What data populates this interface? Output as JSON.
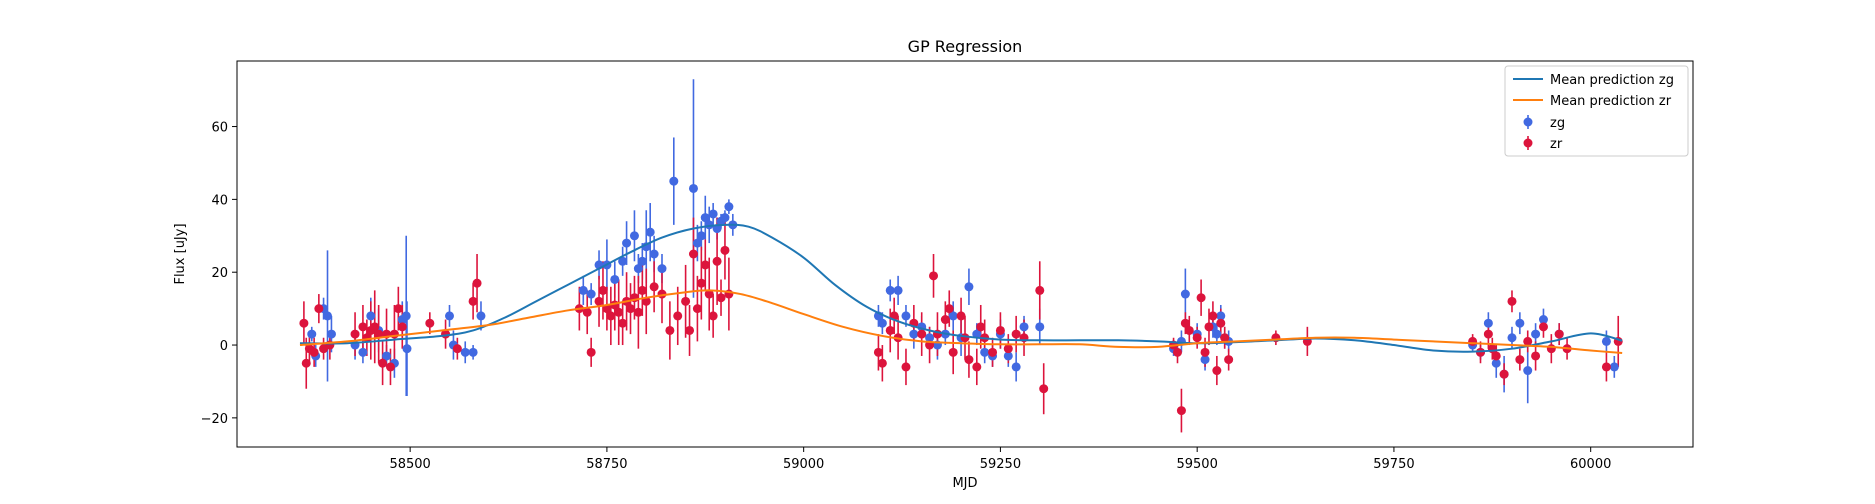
{
  "chart_data": {
    "type": "scatter",
    "title": "GP Regression",
    "xlabel": "MJD",
    "ylabel": "Flux [uJy]",
    "xlim": [
      58280,
      60130
    ],
    "ylim": [
      -28,
      78
    ],
    "grid": false,
    "legend_position": "top-right",
    "x_ticks": [
      58500,
      58750,
      59000,
      59250,
      59500,
      59750,
      60000
    ],
    "y_ticks": [
      -20,
      0,
      20,
      40,
      60
    ],
    "colors": {
      "mean_zg": "#1f77b4",
      "mean_zr": "#ff7f0e",
      "zg": "#4169e1",
      "zr": "#dc143c"
    },
    "lines": [
      {
        "name": "Mean prediction zg",
        "x": [
          58360,
          58420,
          58480,
          58540,
          58580,
          58620,
          58660,
          58700,
          58740,
          58780,
          58820,
          58860,
          58900,
          58930,
          58960,
          59000,
          59040,
          59080,
          59120,
          59160,
          59200,
          59250,
          59300,
          59350,
          59400,
          59450,
          59500,
          59550,
          59600,
          59650,
          59700,
          59750,
          59800,
          59850,
          59900,
          59950,
          60000,
          60040
        ],
        "y": [
          0.5,
          0.5,
          1.5,
          2.5,
          4,
          7.5,
          12,
          16.5,
          21,
          25.5,
          29.5,
          32,
          33,
          32.5,
          29.5,
          24,
          16.5,
          10.5,
          6.5,
          4,
          2.5,
          1.5,
          1.3,
          1.3,
          1.3,
          1,
          0.5,
          0.8,
          1.3,
          1.8,
          1.3,
          0,
          -1.5,
          -1.8,
          -1,
          1,
          3.2,
          1.2
        ]
      },
      {
        "name": "Mean prediction zr",
        "x": [
          58360,
          58420,
          58480,
          58540,
          58600,
          58650,
          58700,
          58750,
          58800,
          58850,
          58880,
          58920,
          58960,
          59000,
          59050,
          59100,
          59150,
          59200,
          59250,
          59300,
          59350,
          59400,
          59450,
          59500,
          59550,
          59600,
          59650,
          59700,
          59750,
          59800,
          59850,
          59900,
          59950,
          60000,
          60040
        ],
        "y": [
          0,
          1,
          2.5,
          4,
          5.5,
          7.5,
          9.5,
          11,
          13,
          14.5,
          15,
          14,
          11.5,
          8.5,
          5,
          2.5,
          1,
          0.5,
          0.2,
          0.2,
          0.2,
          -0.5,
          -0.5,
          0.5,
          1,
          1.5,
          2,
          2,
          1.5,
          1,
          0.5,
          0,
          -0.5,
          -1.5,
          -2.2
        ]
      }
    ],
    "series": [
      {
        "name": "zg",
        "points": [
          [
            58375,
            3,
            2
          ],
          [
            58380,
            -3,
            3
          ],
          [
            58390,
            10,
            3
          ],
          [
            58395,
            8,
            18
          ],
          [
            58400,
            3,
            5
          ],
          [
            58430,
            0,
            4
          ],
          [
            58440,
            -2,
            3
          ],
          [
            58450,
            8,
            5
          ],
          [
            58460,
            4,
            6
          ],
          [
            58470,
            -3,
            3
          ],
          [
            58480,
            -5,
            4
          ],
          [
            58490,
            7,
            5
          ],
          [
            58495,
            8,
            22
          ],
          [
            58496,
            -1,
            13
          ],
          [
            58550,
            8,
            3
          ],
          [
            58555,
            0,
            4
          ],
          [
            58570,
            -2,
            3
          ],
          [
            58580,
            -2,
            2
          ],
          [
            58590,
            8,
            4
          ],
          [
            58720,
            15,
            4
          ],
          [
            58730,
            14,
            3
          ],
          [
            58740,
            22,
            4
          ],
          [
            58750,
            22,
            7
          ],
          [
            58760,
            18,
            5
          ],
          [
            58770,
            23,
            4
          ],
          [
            58775,
            28,
            6
          ],
          [
            58785,
            30,
            7
          ],
          [
            58790,
            21,
            4
          ],
          [
            58795,
            23,
            5
          ],
          [
            58800,
            27,
            10
          ],
          [
            58805,
            31,
            8
          ],
          [
            58810,
            25,
            5
          ],
          [
            58820,
            21,
            4
          ],
          [
            58835,
            45,
            12
          ],
          [
            58860,
            43,
            30
          ],
          [
            58865,
            28,
            5
          ],
          [
            58870,
            30,
            4
          ],
          [
            58875,
            35,
            6
          ],
          [
            58880,
            33,
            5
          ],
          [
            58885,
            36,
            3
          ],
          [
            58890,
            32,
            3
          ],
          [
            58895,
            34,
            2
          ],
          [
            58900,
            35,
            2
          ],
          [
            58905,
            38,
            2
          ],
          [
            58910,
            33,
            3
          ],
          [
            59095,
            8,
            3
          ],
          [
            59100,
            6,
            3
          ],
          [
            59110,
            15,
            3
          ],
          [
            59120,
            15,
            4
          ],
          [
            59130,
            8,
            3
          ],
          [
            59140,
            3,
            4
          ],
          [
            59150,
            5,
            3
          ],
          [
            59160,
            2,
            3
          ],
          [
            59170,
            0,
            4
          ],
          [
            59180,
            3,
            3
          ],
          [
            59190,
            8,
            4
          ],
          [
            59200,
            2,
            5
          ],
          [
            59210,
            16,
            5
          ],
          [
            59220,
            3,
            3
          ],
          [
            59230,
            -2,
            3
          ],
          [
            59240,
            -3,
            3
          ],
          [
            59250,
            3,
            4
          ],
          [
            59260,
            -3,
            3
          ],
          [
            59270,
            -6,
            4
          ],
          [
            59280,
            5,
            3
          ],
          [
            59300,
            5,
            5
          ],
          [
            59470,
            -1,
            2
          ],
          [
            59480,
            1,
            3
          ],
          [
            59485,
            14,
            7
          ],
          [
            59500,
            3,
            3
          ],
          [
            59510,
            -4,
            3
          ],
          [
            59520,
            5,
            3
          ],
          [
            59525,
            3,
            3
          ],
          [
            59530,
            8,
            3
          ],
          [
            59535,
            2,
            3
          ],
          [
            59540,
            1,
            3
          ],
          [
            59850,
            0,
            2
          ],
          [
            59860,
            -2,
            2
          ],
          [
            59870,
            6,
            3
          ],
          [
            59880,
            -5,
            4
          ],
          [
            59890,
            -8,
            5
          ],
          [
            59900,
            2,
            3
          ],
          [
            59910,
            6,
            3
          ],
          [
            59920,
            -7,
            9
          ],
          [
            59930,
            3,
            3
          ],
          [
            59940,
            7,
            3
          ],
          [
            59960,
            3,
            3
          ],
          [
            60020,
            1,
            3
          ],
          [
            60030,
            -6,
            3
          ]
        ]
      },
      {
        "name": "zr",
        "points": [
          [
            58365,
            6,
            6
          ],
          [
            58368,
            -5,
            7
          ],
          [
            58372,
            -1,
            4
          ],
          [
            58378,
            -2,
            4
          ],
          [
            58384,
            10,
            4
          ],
          [
            58390,
            -1,
            3
          ],
          [
            58398,
            0,
            4
          ],
          [
            58430,
            3,
            6
          ],
          [
            58440,
            5,
            6
          ],
          [
            58445,
            2,
            5
          ],
          [
            58450,
            4,
            8
          ],
          [
            58455,
            5,
            10
          ],
          [
            58460,
            3,
            8
          ],
          [
            58465,
            -5,
            6
          ],
          [
            58470,
            3,
            7
          ],
          [
            58475,
            -6,
            5
          ],
          [
            58480,
            3,
            8
          ],
          [
            58485,
            10,
            6
          ],
          [
            58490,
            5,
            6
          ],
          [
            58525,
            6,
            3
          ],
          [
            58545,
            3,
            4
          ],
          [
            58560,
            -1,
            3
          ],
          [
            58580,
            12,
            5
          ],
          [
            58585,
            17,
            8
          ],
          [
            58715,
            10,
            6
          ],
          [
            58725,
            9,
            6
          ],
          [
            58730,
            -2,
            4
          ],
          [
            58740,
            12,
            7
          ],
          [
            58745,
            15,
            8
          ],
          [
            58750,
            10,
            6
          ],
          [
            58755,
            8,
            8
          ],
          [
            58760,
            11,
            7
          ],
          [
            58765,
            9,
            9
          ],
          [
            58770,
            6,
            6
          ],
          [
            58775,
            12,
            8
          ],
          [
            58780,
            10,
            7
          ],
          [
            58785,
            13,
            6
          ],
          [
            58790,
            9,
            10
          ],
          [
            58795,
            15,
            7
          ],
          [
            58800,
            12,
            9
          ],
          [
            58810,
            16,
            7
          ],
          [
            58820,
            14,
            8
          ],
          [
            58830,
            4,
            8
          ],
          [
            58840,
            8,
            8
          ],
          [
            58850,
            12,
            10
          ],
          [
            58855,
            4,
            7
          ],
          [
            58860,
            25,
            10
          ],
          [
            58865,
            10,
            9
          ],
          [
            58870,
            17,
            10
          ],
          [
            58875,
            22,
            7
          ],
          [
            58880,
            14,
            10
          ],
          [
            58885,
            8,
            6
          ],
          [
            58890,
            23,
            12
          ],
          [
            58895,
            13,
            5
          ],
          [
            58900,
            26,
            8
          ],
          [
            58905,
            14,
            10
          ],
          [
            59095,
            -2,
            5
          ],
          [
            59100,
            -5,
            5
          ],
          [
            59110,
            4,
            6
          ],
          [
            59115,
            8,
            5
          ],
          [
            59120,
            2,
            6
          ],
          [
            59130,
            -6,
            5
          ],
          [
            59140,
            6,
            5
          ],
          [
            59150,
            3,
            6
          ],
          [
            59160,
            0,
            5
          ],
          [
            59165,
            19,
            6
          ],
          [
            59170,
            3,
            6
          ],
          [
            59180,
            7,
            5
          ],
          [
            59185,
            10,
            5
          ],
          [
            59190,
            -2,
            6
          ],
          [
            59200,
            8,
            5
          ],
          [
            59205,
            2,
            6
          ],
          [
            59210,
            -4,
            5
          ],
          [
            59220,
            -6,
            5
          ],
          [
            59225,
            5,
            6
          ],
          [
            59230,
            2,
            5
          ],
          [
            59240,
            -2,
            4
          ],
          [
            59250,
            4,
            5
          ],
          [
            59260,
            -1,
            4
          ],
          [
            59270,
            3,
            5
          ],
          [
            59280,
            2,
            5
          ],
          [
            59300,
            15,
            8
          ],
          [
            59305,
            -12,
            7
          ],
          [
            59470,
            0,
            2
          ],
          [
            59475,
            -2,
            3
          ],
          [
            59480,
            -18,
            6
          ],
          [
            59485,
            6,
            3
          ],
          [
            59490,
            4,
            4
          ],
          [
            59500,
            2,
            3
          ],
          [
            59505,
            13,
            5
          ],
          [
            59510,
            -2,
            4
          ],
          [
            59515,
            5,
            5
          ],
          [
            59520,
            8,
            4
          ],
          [
            59525,
            -7,
            4
          ],
          [
            59530,
            6,
            4
          ],
          [
            59535,
            2,
            3
          ],
          [
            59540,
            -4,
            3
          ],
          [
            59600,
            2,
            2
          ],
          [
            59640,
            1,
            4
          ],
          [
            59850,
            1,
            2
          ],
          [
            59860,
            -2,
            3
          ],
          [
            59870,
            3,
            4
          ],
          [
            59875,
            -1,
            3
          ],
          [
            59880,
            -3,
            3
          ],
          [
            59890,
            -8,
            3
          ],
          [
            59900,
            12,
            3
          ],
          [
            59910,
            -4,
            3
          ],
          [
            59920,
            1,
            3
          ],
          [
            59930,
            -3,
            4
          ],
          [
            59940,
            5,
            3
          ],
          [
            59950,
            -1,
            4
          ],
          [
            59960,
            3,
            3
          ],
          [
            59970,
            -1,
            3
          ],
          [
            60020,
            -6,
            4
          ],
          [
            60035,
            1,
            7
          ]
        ]
      }
    ]
  }
}
